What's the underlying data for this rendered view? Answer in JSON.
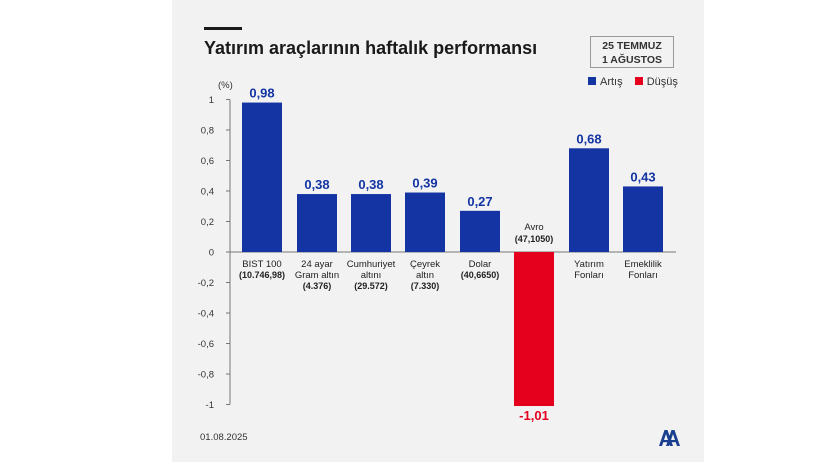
{
  "header": {
    "title": "Yatırım araçlarının haftalık performansı",
    "date_line1": "25 TEMMUZ",
    "date_line2": "1 AĞUSTOS"
  },
  "legend": [
    {
      "label": "Artış",
      "color": "#1434a4"
    },
    {
      "label": "Düşüş",
      "color": "#e5001e"
    }
  ],
  "footer": {
    "date": "01.08.2025",
    "logo_icon": "aa-logo-icon"
  },
  "chart_data": {
    "type": "bar",
    "title": "Yatırım araçlarının haftalık performansı",
    "ylabel": "(%)",
    "ylim": [
      -1,
      1
    ],
    "yticks": [
      "1",
      "0,8",
      "0,6",
      "0,4",
      "0,2",
      "0",
      "-0,2",
      "-0,4",
      "-0,6",
      "-0,8",
      "-1"
    ],
    "grid": false,
    "legend_position": "top-right",
    "categories": [
      {
        "name": [
          "BIST 100"
        ],
        "sub": "(10.746,98)",
        "value": 0.98,
        "label": "0,98"
      },
      {
        "name": [
          "24 ayar",
          "Gram altın"
        ],
        "sub": "(4.376)",
        "value": 0.38,
        "label": "0,38"
      },
      {
        "name": [
          "Cumhuriyet",
          "altını"
        ],
        "sub": "(29.572)",
        "value": 0.38,
        "label": "0,38"
      },
      {
        "name": [
          "Çeyrek",
          "altın"
        ],
        "sub": "(7.330)",
        "value": 0.39,
        "label": "0,39"
      },
      {
        "name": [
          "Dolar"
        ],
        "sub": "(40,6650)",
        "value": 0.27,
        "label": "0,27"
      },
      {
        "name": [
          "Avro"
        ],
        "sub": "(47,1050)",
        "value": -1.01,
        "label": "-1,01"
      },
      {
        "name": [
          "Yatırım",
          "Fonları"
        ],
        "sub": "",
        "value": 0.68,
        "label": "0,68"
      },
      {
        "name": [
          "Emeklilik",
          "Fonları"
        ],
        "sub": "",
        "value": 0.43,
        "label": "0,43"
      }
    ],
    "colors": {
      "positive": "#1434a4",
      "negative": "#e5001e",
      "positive_label": "#1434a4",
      "negative_label": "#e5001e"
    }
  }
}
